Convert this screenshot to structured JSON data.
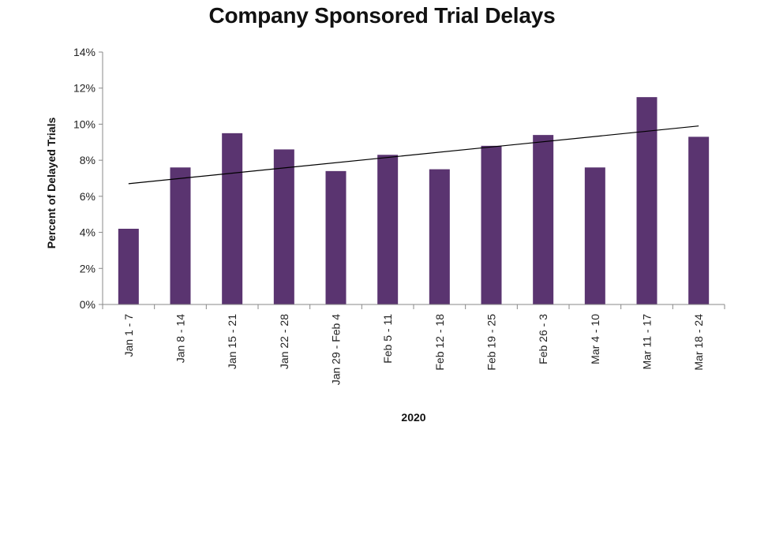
{
  "chart_data": {
    "type": "bar",
    "title": "Company Sponsored Trial Delays",
    "xlabel": "2020",
    "ylabel": "Percent of Delayed Trials",
    "categories": [
      "Jan 1 - 7",
      "Jan 8 - 14",
      "Jan 15 - 21",
      "Jan 22 - 28",
      "Jan 29 - Feb 4",
      "Feb 5 - 11",
      "Feb 12 - 18",
      "Feb 19 - 25",
      "Feb 26 - 3",
      "Mar 4 - 10",
      "Mar 11 - 17",
      "Mar 18 - 24"
    ],
    "series": [
      {
        "values": [
          4.2,
          7.6,
          9.5,
          8.6,
          7.4,
          8.3,
          7.5,
          8.8,
          9.4,
          7.6,
          11.5,
          9.3
        ],
        "color": "#5a3470"
      }
    ],
    "trendline": {
      "type": "linear",
      "start": 6.7,
      "end": 9.9,
      "color": "#000000"
    },
    "ylim": [
      0,
      14
    ],
    "yticks": [
      0,
      2,
      4,
      6,
      8,
      10,
      12,
      14
    ],
    "ytick_labels": [
      "0%",
      "2%",
      "4%",
      "6%",
      "8%",
      "10%",
      "12%",
      "14%"
    ],
    "grid": false,
    "legend": "none"
  }
}
